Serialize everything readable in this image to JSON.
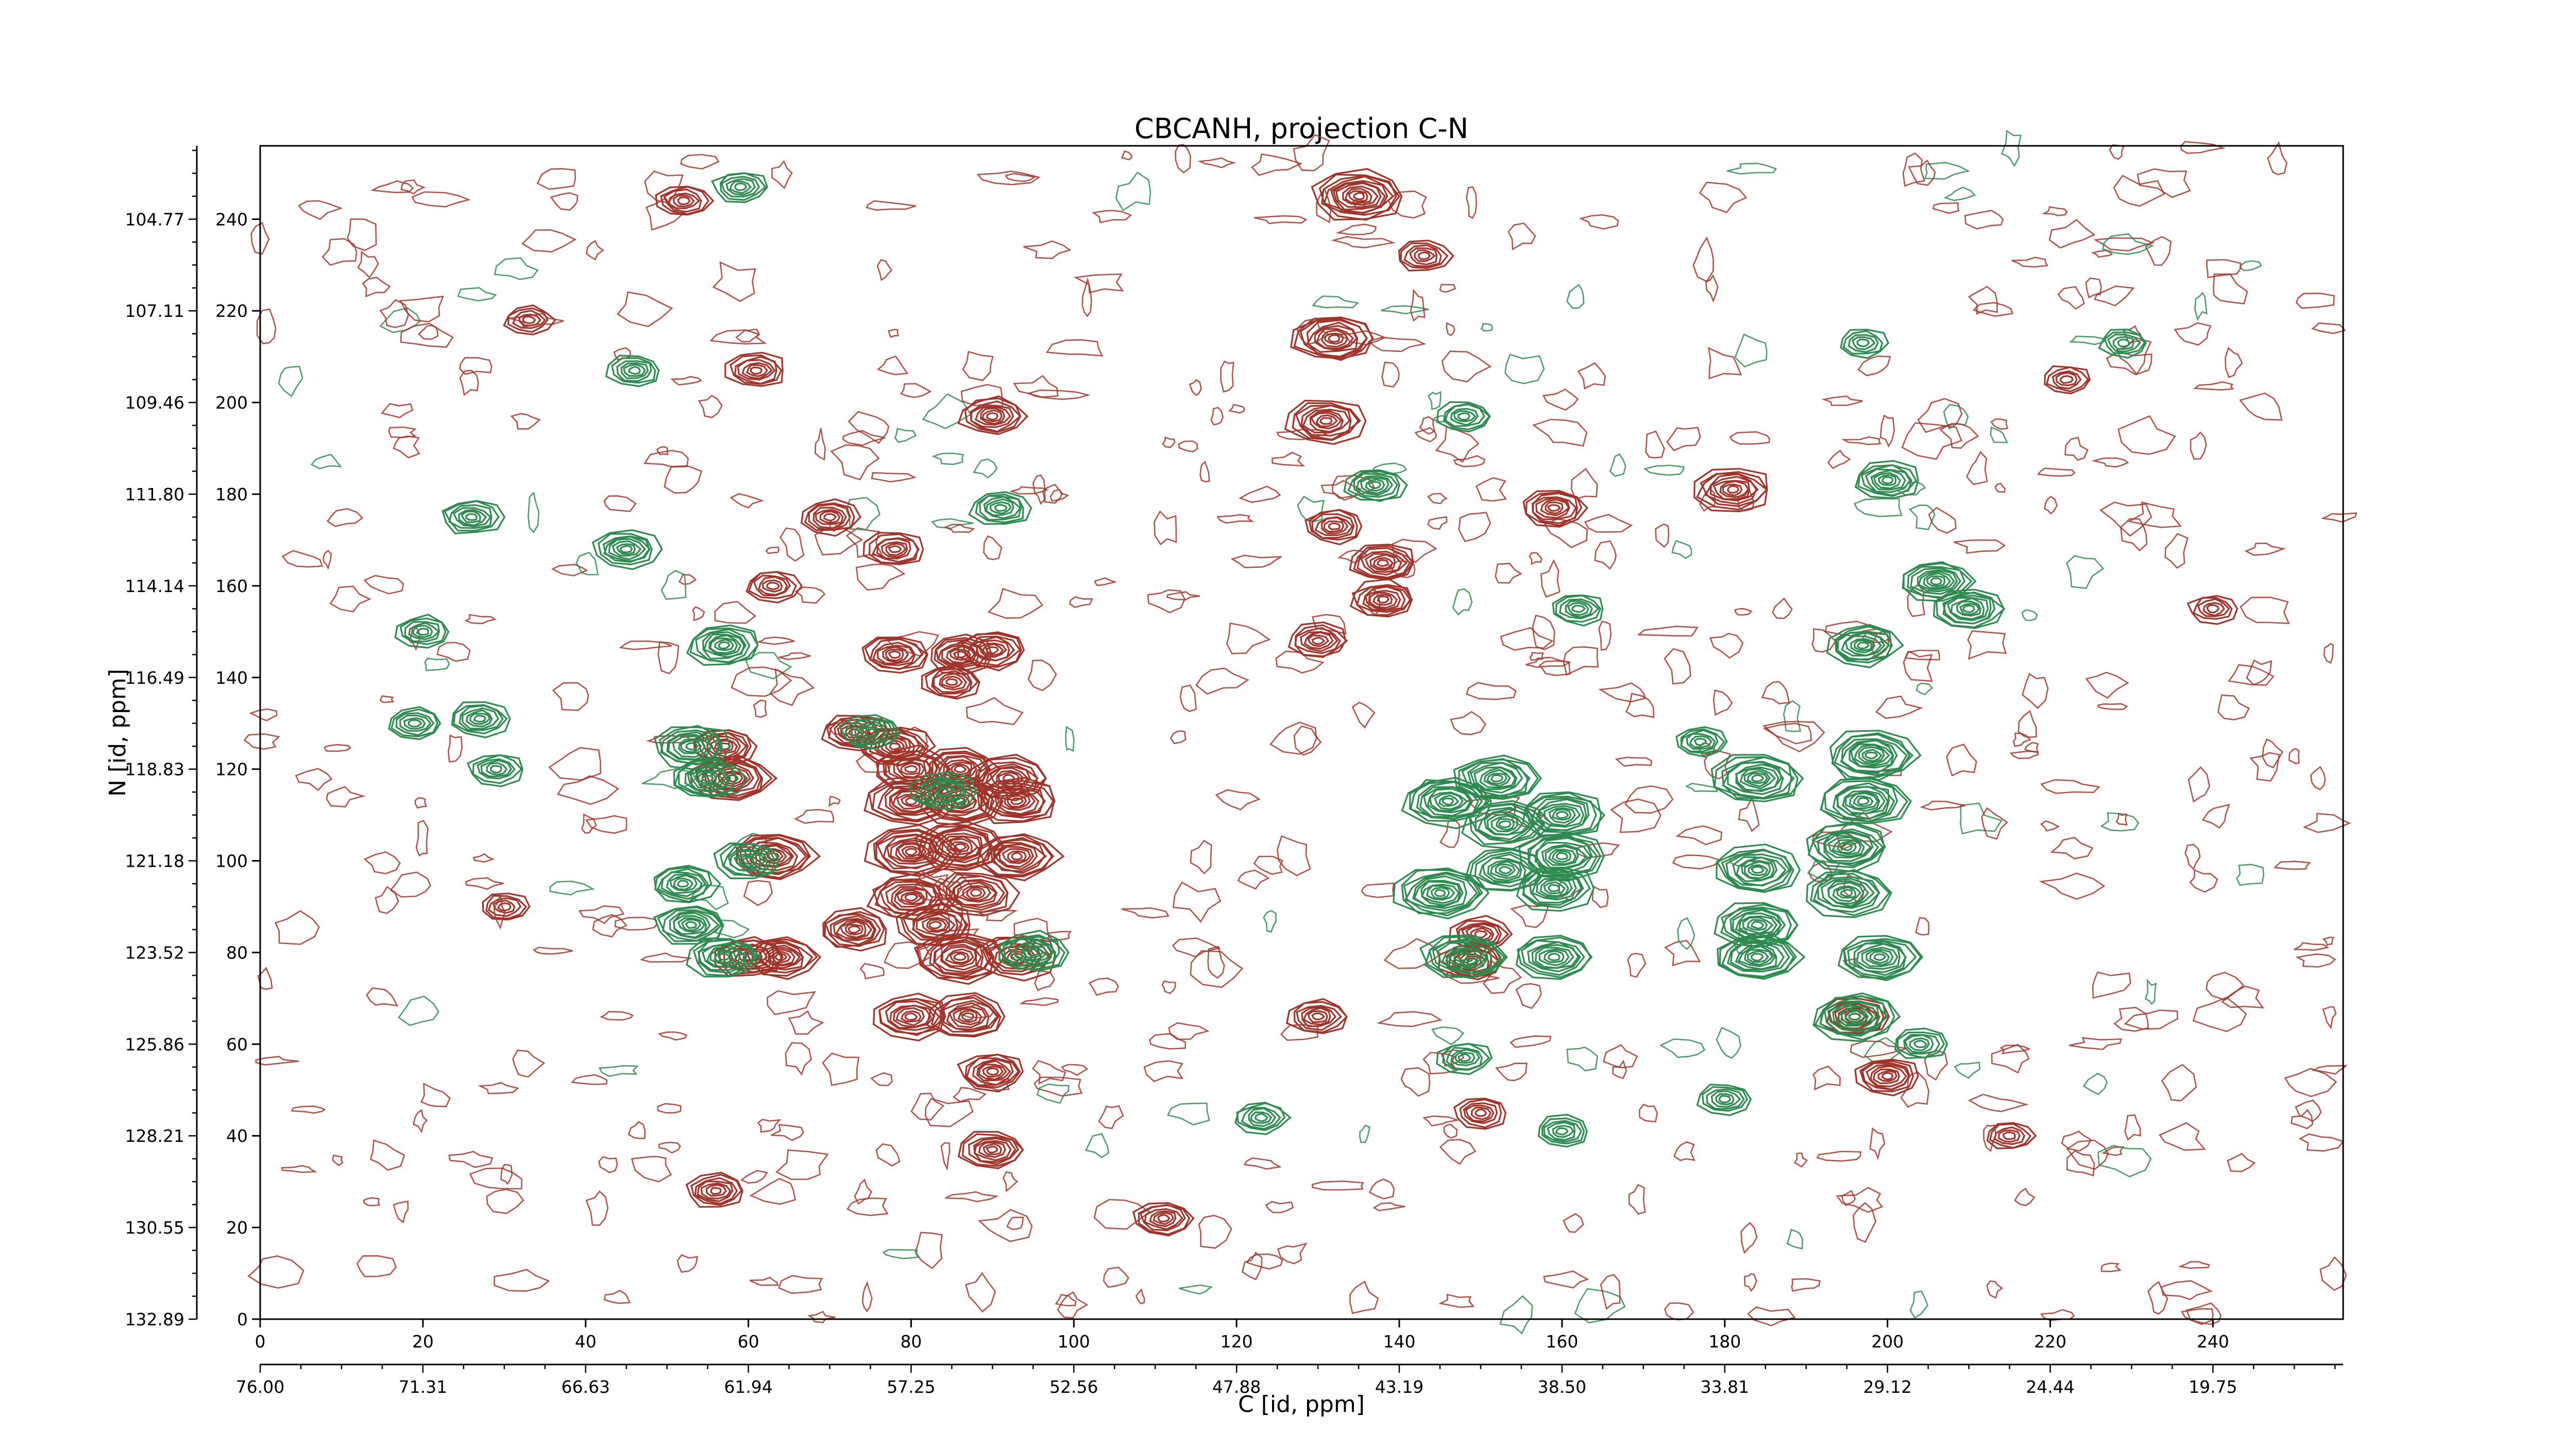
{
  "chart_data": {
    "type": "contour",
    "title": "CBCANH, projection C-N",
    "xlabel": "C [id, ppm]",
    "ylabel": "N [id, ppm]",
    "x_index_range": [
      0,
      256
    ],
    "y_index_range": [
      0,
      256
    ],
    "x_index_ticks": [
      0,
      20,
      40,
      60,
      80,
      100,
      120,
      140,
      160,
      180,
      200,
      220,
      240
    ],
    "y_index_ticks": [
      0,
      20,
      40,
      60,
      80,
      100,
      120,
      140,
      160,
      180,
      200,
      220,
      240
    ],
    "x_ppm_tick_labels": [
      "76.00",
      "71.31",
      "66.63",
      "61.94",
      "57.25",
      "52.56",
      "47.88",
      "43.19",
      "38.50",
      "33.81",
      "29.12",
      "24.44",
      "19.75"
    ],
    "y_ppm_tick_labels": [
      "132.89",
      "130.55",
      "128.21",
      "125.86",
      "123.52",
      "121.18",
      "118.83",
      "116.49",
      "114.14",
      "111.80",
      "109.46",
      "107.11",
      "104.77"
    ],
    "series": [
      {
        "color": "#a0342a",
        "sign": "positive"
      },
      {
        "color": "#2e8b4f",
        "sign": "negative"
      }
    ],
    "peaks": [
      {
        "x": 135,
        "y": 245,
        "sign": "positive",
        "amp": 1.0
      },
      {
        "x": 132,
        "y": 214,
        "sign": "positive",
        "amp": 0.9
      },
      {
        "x": 131,
        "y": 196,
        "sign": "positive",
        "amp": 0.8
      },
      {
        "x": 90,
        "y": 197,
        "sign": "positive",
        "amp": 0.6
      },
      {
        "x": 61,
        "y": 207,
        "sign": "positive",
        "amp": 0.5
      },
      {
        "x": 181,
        "y": 181,
        "sign": "positive",
        "amp": 0.8
      },
      {
        "x": 159,
        "y": 177,
        "sign": "positive",
        "amp": 0.6
      },
      {
        "x": 132,
        "y": 173,
        "sign": "positive",
        "amp": 0.5
      },
      {
        "x": 138,
        "y": 165,
        "sign": "positive",
        "amp": 0.6
      },
      {
        "x": 138,
        "y": 157,
        "sign": "positive",
        "amp": 0.6
      },
      {
        "x": 70,
        "y": 175,
        "sign": "positive",
        "amp": 0.5
      },
      {
        "x": 78,
        "y": 168,
        "sign": "positive",
        "amp": 0.5
      },
      {
        "x": 63,
        "y": 160,
        "sign": "positive",
        "amp": 0.4
      },
      {
        "x": 78,
        "y": 145,
        "sign": "positive",
        "amp": 0.6
      },
      {
        "x": 86,
        "y": 145,
        "sign": "positive",
        "amp": 0.6
      },
      {
        "x": 90,
        "y": 146,
        "sign": "positive",
        "amp": 0.6
      },
      {
        "x": 130,
        "y": 148,
        "sign": "positive",
        "amp": 0.5
      },
      {
        "x": 85,
        "y": 139,
        "sign": "positive",
        "amp": 0.5
      },
      {
        "x": 78,
        "y": 125,
        "sign": "positive",
        "amp": 0.7
      },
      {
        "x": 73,
        "y": 128,
        "sign": "positive",
        "amp": 0.6
      },
      {
        "x": 80,
        "y": 120,
        "sign": "positive",
        "amp": 0.8
      },
      {
        "x": 86,
        "y": 120,
        "sign": "positive",
        "amp": 0.7
      },
      {
        "x": 92,
        "y": 118,
        "sign": "positive",
        "amp": 0.8
      },
      {
        "x": 58,
        "y": 118,
        "sign": "positive",
        "amp": 0.9
      },
      {
        "x": 57,
        "y": 125,
        "sign": "positive",
        "amp": 0.6
      },
      {
        "x": 80,
        "y": 113,
        "sign": "positive",
        "amp": 1.0
      },
      {
        "x": 86,
        "y": 113,
        "sign": "positive",
        "amp": 0.9
      },
      {
        "x": 93,
        "y": 113,
        "sign": "positive",
        "amp": 0.9
      },
      {
        "x": 63,
        "y": 101,
        "sign": "positive",
        "amp": 0.9
      },
      {
        "x": 80,
        "y": 102,
        "sign": "positive",
        "amp": 1.0
      },
      {
        "x": 86,
        "y": 103,
        "sign": "positive",
        "amp": 1.0
      },
      {
        "x": 93,
        "y": 101,
        "sign": "positive",
        "amp": 0.9
      },
      {
        "x": 80,
        "y": 92,
        "sign": "positive",
        "amp": 0.9
      },
      {
        "x": 88,
        "y": 93,
        "sign": "positive",
        "amp": 0.8
      },
      {
        "x": 73,
        "y": 85,
        "sign": "positive",
        "amp": 0.7
      },
      {
        "x": 83,
        "y": 86,
        "sign": "positive",
        "amp": 0.8
      },
      {
        "x": 86,
        "y": 79,
        "sign": "positive",
        "amp": 1.0
      },
      {
        "x": 93,
        "y": 79,
        "sign": "positive",
        "amp": 0.8
      },
      {
        "x": 60,
        "y": 79,
        "sign": "positive",
        "amp": 0.7
      },
      {
        "x": 64,
        "y": 79,
        "sign": "positive",
        "amp": 0.7
      },
      {
        "x": 80,
        "y": 66,
        "sign": "positive",
        "amp": 0.8
      },
      {
        "x": 87,
        "y": 66,
        "sign": "positive",
        "amp": 0.8
      },
      {
        "x": 90,
        "y": 54,
        "sign": "positive",
        "amp": 0.6
      },
      {
        "x": 90,
        "y": 37,
        "sign": "positive",
        "amp": 0.6
      },
      {
        "x": 56,
        "y": 28,
        "sign": "positive",
        "amp": 0.5
      },
      {
        "x": 111,
        "y": 22,
        "sign": "positive",
        "amp": 0.5
      },
      {
        "x": 149,
        "y": 78,
        "sign": "positive",
        "amp": 0.6
      },
      {
        "x": 150,
        "y": 84,
        "sign": "positive",
        "amp": 0.5
      },
      {
        "x": 150,
        "y": 45,
        "sign": "positive",
        "amp": 0.4
      },
      {
        "x": 200,
        "y": 53,
        "sign": "positive",
        "amp": 0.6
      },
      {
        "x": 196,
        "y": 66,
        "sign": "positive",
        "amp": 0.6
      },
      {
        "x": 130,
        "y": 66,
        "sign": "positive",
        "amp": 0.5
      },
      {
        "x": 52,
        "y": 244,
        "sign": "positive",
        "amp": 0.4
      },
      {
        "x": 33,
        "y": 218,
        "sign": "positive",
        "amp": 0.3
      },
      {
        "x": 143,
        "y": 232,
        "sign": "positive",
        "amp": 0.4
      },
      {
        "x": 222,
        "y": 205,
        "sign": "positive",
        "amp": 0.3
      },
      {
        "x": 240,
        "y": 155,
        "sign": "positive",
        "amp": 0.3
      },
      {
        "x": 30,
        "y": 90,
        "sign": "positive",
        "amp": 0.3
      },
      {
        "x": 215,
        "y": 40,
        "sign": "positive",
        "amp": 0.3
      },
      {
        "x": 57,
        "y": 147,
        "sign": "negative",
        "amp": 0.7
      },
      {
        "x": 53,
        "y": 125,
        "sign": "negative",
        "amp": 0.8
      },
      {
        "x": 55,
        "y": 118,
        "sign": "negative",
        "amp": 0.7
      },
      {
        "x": 52,
        "y": 95,
        "sign": "negative",
        "amp": 0.6
      },
      {
        "x": 53,
        "y": 86,
        "sign": "negative",
        "amp": 0.7
      },
      {
        "x": 57,
        "y": 79,
        "sign": "negative",
        "amp": 0.7
      },
      {
        "x": 75,
        "y": 128,
        "sign": "negative",
        "amp": 0.5
      },
      {
        "x": 84,
        "y": 115,
        "sign": "negative",
        "amp": 0.6
      },
      {
        "x": 95,
        "y": 80,
        "sign": "negative",
        "amp": 0.7
      },
      {
        "x": 60,
        "y": 100,
        "sign": "negative",
        "amp": 0.6
      },
      {
        "x": 146,
        "y": 113,
        "sign": "negative",
        "amp": 1.0
      },
      {
        "x": 152,
        "y": 118,
        "sign": "negative",
        "amp": 0.9
      },
      {
        "x": 153,
        "y": 108,
        "sign": "negative",
        "amp": 0.9
      },
      {
        "x": 145,
        "y": 93,
        "sign": "negative",
        "amp": 1.0
      },
      {
        "x": 153,
        "y": 98,
        "sign": "negative",
        "amp": 0.8
      },
      {
        "x": 160,
        "y": 110,
        "sign": "negative",
        "amp": 0.9
      },
      {
        "x": 160,
        "y": 101,
        "sign": "negative",
        "amp": 0.9
      },
      {
        "x": 159,
        "y": 94,
        "sign": "negative",
        "amp": 0.8
      },
      {
        "x": 148,
        "y": 79,
        "sign": "negative",
        "amp": 0.9
      },
      {
        "x": 159,
        "y": 79,
        "sign": "negative",
        "amp": 0.8
      },
      {
        "x": 184,
        "y": 118,
        "sign": "negative",
        "amp": 1.0
      },
      {
        "x": 184,
        "y": 98,
        "sign": "negative",
        "amp": 0.9
      },
      {
        "x": 184,
        "y": 86,
        "sign": "negative",
        "amp": 0.9
      },
      {
        "x": 184,
        "y": 79,
        "sign": "negative",
        "amp": 0.9
      },
      {
        "x": 198,
        "y": 123,
        "sign": "negative",
        "amp": 1.0
      },
      {
        "x": 197,
        "y": 113,
        "sign": "negative",
        "amp": 1.0
      },
      {
        "x": 195,
        "y": 103,
        "sign": "negative",
        "amp": 0.9
      },
      {
        "x": 195,
        "y": 93,
        "sign": "negative",
        "amp": 0.9
      },
      {
        "x": 199,
        "y": 79,
        "sign": "negative",
        "amp": 0.9
      },
      {
        "x": 196,
        "y": 66,
        "sign": "negative",
        "amp": 0.9
      },
      {
        "x": 197,
        "y": 147,
        "sign": "negative",
        "amp": 0.7
      },
      {
        "x": 206,
        "y": 161,
        "sign": "negative",
        "amp": 0.7
      },
      {
        "x": 210,
        "y": 155,
        "sign": "negative",
        "amp": 0.7
      },
      {
        "x": 200,
        "y": 183,
        "sign": "negative",
        "amp": 0.6
      },
      {
        "x": 137,
        "y": 182,
        "sign": "negative",
        "amp": 0.5
      },
      {
        "x": 91,
        "y": 177,
        "sign": "negative",
        "amp": 0.5
      },
      {
        "x": 45,
        "y": 168,
        "sign": "negative",
        "amp": 0.6
      },
      {
        "x": 26,
        "y": 175,
        "sign": "negative",
        "amp": 0.5
      },
      {
        "x": 20,
        "y": 150,
        "sign": "negative",
        "amp": 0.4
      },
      {
        "x": 27,
        "y": 131,
        "sign": "negative",
        "amp": 0.5
      },
      {
        "x": 19,
        "y": 130,
        "sign": "negative",
        "amp": 0.4
      },
      {
        "x": 29,
        "y": 120,
        "sign": "negative",
        "amp": 0.4
      },
      {
        "x": 59,
        "y": 247,
        "sign": "negative",
        "amp": 0.4
      },
      {
        "x": 46,
        "y": 207,
        "sign": "negative",
        "amp": 0.4
      },
      {
        "x": 148,
        "y": 197,
        "sign": "negative",
        "amp": 0.4
      },
      {
        "x": 162,
        "y": 155,
        "sign": "negative",
        "amp": 0.4
      },
      {
        "x": 177,
        "y": 126,
        "sign": "negative",
        "amp": 0.4
      },
      {
        "x": 148,
        "y": 57,
        "sign": "negative",
        "amp": 0.4
      },
      {
        "x": 160,
        "y": 41,
        "sign": "negative",
        "amp": 0.4
      },
      {
        "x": 180,
        "y": 48,
        "sign": "negative",
        "amp": 0.4
      },
      {
        "x": 123,
        "y": 44,
        "sign": "negative",
        "amp": 0.4
      },
      {
        "x": 204,
        "y": 60,
        "sign": "negative",
        "amp": 0.4
      },
      {
        "x": 229,
        "y": 213,
        "sign": "negative",
        "amp": 0.3
      },
      {
        "x": 197,
        "y": 213,
        "sign": "negative",
        "amp": 0.3
      }
    ]
  }
}
